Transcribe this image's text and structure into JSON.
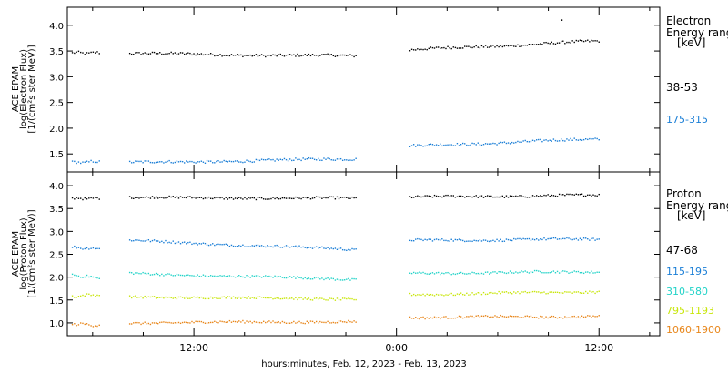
{
  "chart_data": [
    {
      "type": "scatter",
      "panel": "electron",
      "ylabel": [
        "ACE EPAM",
        "log(Electron Flux)",
        "[1/(cm²s ster MeV)]"
      ],
      "ylim": [
        1.15,
        4.35
      ],
      "yticks": [
        1.5,
        2.0,
        2.5,
        3.0,
        3.5,
        4.0
      ],
      "ytick_labels": [
        "1.5",
        "2.0",
        "2.5",
        "3.0",
        "3.5",
        "4.0"
      ],
      "legend_title": [
        "Electron",
        "Energy ranges",
        "[keV]"
      ],
      "series": [
        {
          "name": "38-53",
          "color": "#000000",
          "segments": [
            {
              "x": [
                4.8,
                6.4
              ],
              "y": [
                3.46,
                3.46
              ]
            },
            {
              "x": [
                8.2,
                21.6
              ],
              "y": [
                3.45,
                3.4
              ]
            },
            {
              "x": [
                24.8,
                36.0
              ],
              "y": [
                3.52,
                3.69
              ]
            }
          ],
          "outliers": [
            {
              "x": 33.8,
              "y": 4.1
            }
          ]
        },
        {
          "name": "175-315",
          "color": "#1a7ed6",
          "segments": [
            {
              "x": [
                4.8,
                6.4
              ],
              "y": [
                1.33,
                1.35
              ]
            },
            {
              "x": [
                8.2,
                21.6
              ],
              "y": [
                1.33,
                1.4
              ]
            },
            {
              "x": [
                24.8,
                36.0
              ],
              "y": [
                1.65,
                1.79
              ]
            }
          ]
        }
      ]
    },
    {
      "type": "scatter",
      "panel": "proton",
      "ylabel": [
        "ACE EPAM",
        "log(Proton Flux)",
        "[1/(cm²s ster MeV)]"
      ],
      "ylim": [
        0.72,
        4.3
      ],
      "yticks": [
        1.0,
        1.5,
        2.0,
        2.5,
        3.0,
        3.5,
        4.0
      ],
      "ytick_labels": [
        "1.0",
        "1.5",
        "2.0",
        "2.5",
        "3.0",
        "3.5",
        "4.0"
      ],
      "legend_title": [
        "Proton",
        "Energy ranges",
        "[keV]"
      ],
      "series": [
        {
          "name": "47-68",
          "color": "#000000",
          "segments": [
            {
              "x": [
                4.8,
                6.4
              ],
              "y": [
                3.72,
                3.72
              ]
            },
            {
              "x": [
                8.2,
                21.6
              ],
              "y": [
                3.74,
                3.72
              ]
            },
            {
              "x": [
                24.8,
                36.0
              ],
              "y": [
                3.75,
                3.79
              ]
            }
          ]
        },
        {
          "name": "115-195",
          "color": "#1a7ed6",
          "segments": [
            {
              "x": [
                4.8,
                6.4
              ],
              "y": [
                2.65,
                2.62
              ]
            },
            {
              "x": [
                8.2,
                21.6
              ],
              "y": [
                2.8,
                2.6
              ]
            },
            {
              "x": [
                24.8,
                36.0
              ],
              "y": [
                2.8,
                2.83
              ]
            }
          ]
        },
        {
          "name": "310-580",
          "color": "#22d3c8",
          "segments": [
            {
              "x": [
                4.8,
                6.4
              ],
              "y": [
                2.05,
                1.98
              ]
            },
            {
              "x": [
                8.2,
                21.6
              ],
              "y": [
                2.08,
                1.95
              ]
            },
            {
              "x": [
                24.8,
                36.0
              ],
              "y": [
                2.08,
                2.12
              ]
            }
          ]
        },
        {
          "name": "795-1193",
          "color": "#c8e60a",
          "segments": [
            {
              "x": [
                4.8,
                6.4
              ],
              "y": [
                1.58,
                1.62
              ]
            },
            {
              "x": [
                8.2,
                21.6
              ],
              "y": [
                1.57,
                1.52
              ]
            },
            {
              "x": [
                24.8,
                36.0
              ],
              "y": [
                1.62,
                1.68
              ]
            }
          ]
        },
        {
          "name": "1060-1900",
          "color": "#e8861a",
          "segments": [
            {
              "x": [
                4.8,
                6.4
              ],
              "y": [
                0.98,
                0.95
              ]
            },
            {
              "x": [
                8.2,
                21.6
              ],
              "y": [
                1.0,
                1.03
              ]
            },
            {
              "x": [
                24.8,
                36.0
              ],
              "y": [
                1.12,
                1.14
              ]
            }
          ]
        }
      ]
    }
  ],
  "x_axis": {
    "label": "hours:minutes, Feb. 12, 2023 - Feb. 13, 2023",
    "unit": "hours since Feb. 12, 2023 00:00",
    "range": [
      4.5,
      39.6
    ],
    "ticks": [
      12,
      24,
      36
    ],
    "tick_labels": [
      "12:00",
      "0:00",
      "12:00"
    ]
  }
}
